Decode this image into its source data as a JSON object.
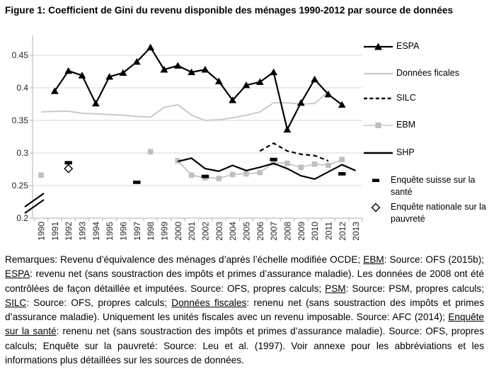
{
  "title": "Figure 1: Coefficient de Gini du revenu disponible des ménages 1990-2012 par source de données",
  "chart_data": {
    "type": "line",
    "title": "Coefficient de Gini du revenu disponible des ménages 1990-2012 par source de données",
    "xlabel": "",
    "ylabel": "",
    "y_ticks": [
      0.2,
      0.25,
      0.3,
      0.35,
      0.4,
      0.45
    ],
    "x_ticks": [
      1990,
      1991,
      1992,
      1993,
      1994,
      1995,
      1996,
      1997,
      1998,
      1999,
      2000,
      2001,
      2002,
      2003,
      2004,
      2005,
      2006,
      2007,
      2008,
      2009,
      2010,
      2011,
      2012,
      2013
    ],
    "ylim": [
      0.2,
      0.47
    ],
    "y_axis_break_between": [
      0.2,
      0.25
    ],
    "grid": "horizontal",
    "legend_position": "right",
    "series": [
      {
        "name": "ESPA",
        "style": "line+triangle",
        "color": "#000000",
        "width": 2.2,
        "x": [
          1991,
          1992,
          1993,
          1994,
          1995,
          1996,
          1997,
          1998,
          1999,
          2000,
          2001,
          2002,
          2003,
          2004,
          2005,
          2006,
          2007,
          2008,
          2009,
          2010,
          2011,
          2012
        ],
        "y": [
          0.395,
          0.426,
          0.419,
          0.376,
          0.417,
          0.423,
          0.44,
          0.462,
          0.428,
          0.434,
          0.424,
          0.428,
          0.41,
          0.381,
          0.404,
          0.409,
          0.424,
          0.336,
          0.377,
          0.413,
          0.39,
          0.374
        ]
      },
      {
        "name": "Données ficales",
        "style": "line",
        "color": "#c9c9c9",
        "width": 2,
        "x": [
          1990,
          1991,
          1992,
          1993,
          1994,
          1995,
          1996,
          1997,
          1998,
          1999,
          2000,
          2001,
          2002,
          2003,
          2004,
          2005,
          2006,
          2007,
          2008,
          2009,
          2010,
          2011
        ],
        "y": [
          0.363,
          0.364,
          0.364,
          0.361,
          0.36,
          0.359,
          0.358,
          0.356,
          0.355,
          0.37,
          0.374,
          0.358,
          0.35,
          0.351,
          0.354,
          0.358,
          0.363,
          0.377,
          0.377,
          0.375,
          0.376,
          0.394
        ]
      },
      {
        "name": "SILC",
        "style": "dashed",
        "color": "#000000",
        "width": 2.2,
        "x": [
          2006,
          2007,
          2008,
          2009,
          2010,
          2011
        ],
        "y": [
          0.303,
          0.315,
          0.303,
          0.298,
          0.296,
          0.288
        ]
      },
      {
        "name": "EBM",
        "style": "line+square",
        "color": "#bfbfbf",
        "width": 1.6,
        "x": [
          2000,
          2001,
          2002,
          2003,
          2004,
          2005,
          2006,
          2007,
          2008,
          2009,
          2010,
          2011,
          2012
        ],
        "y": [
          0.288,
          0.266,
          0.262,
          0.261,
          0.267,
          0.268,
          0.27,
          0.285,
          0.284,
          0.278,
          0.283,
          0.281,
          0.29
        ],
        "isolated": [
          {
            "x": 1990,
            "y": 0.266
          },
          {
            "x": 1998,
            "y": 0.302
          }
        ]
      },
      {
        "name": "SHP",
        "style": "line",
        "color": "#000000",
        "width": 2.2,
        "x": [
          2000,
          2001,
          2002,
          2003,
          2004,
          2005,
          2006,
          2007,
          2008,
          2009,
          2010,
          2011,
          2012,
          2013
        ],
        "y": [
          0.287,
          0.292,
          0.276,
          0.272,
          0.281,
          0.273,
          0.278,
          0.284,
          0.276,
          0.265,
          0.26,
          0.271,
          0.282,
          0.273
        ]
      },
      {
        "name": "Enquête suisse sur la santé",
        "style": "bar-marker",
        "color": "#000000",
        "width": 0,
        "x": [
          1992,
          1997,
          2002,
          2007,
          2012
        ],
        "y": [
          0.285,
          0.255,
          0.264,
          0.29,
          0.268
        ]
      },
      {
        "name": "Enquête nationale sur la pauvreté",
        "style": "diamond",
        "color": "#000000",
        "width": 0,
        "x": [
          1992
        ],
        "y": [
          0.276
        ]
      }
    ]
  },
  "footnote": {
    "segments": [
      {
        "t": "Remarques: Revenu d’équivalence des ménages d’après l’échelle modifiée OCDE; ",
        "u": false
      },
      {
        "t": "EBM",
        "u": true
      },
      {
        "t": ": Source: OFS (2015b); ",
        "u": false
      },
      {
        "t": "ESPA",
        "u": true
      },
      {
        "t": ": revenu net (sans soustraction des impôts et primes d’assurance maladie). Les données de 2008 ont été contrôlées de façon détaillée et imputées. Source: OFS, propres calculs; ",
        "u": false
      },
      {
        "t": "PSM",
        "u": true
      },
      {
        "t": ": Source: PSM, propres calculs; ",
        "u": false
      },
      {
        "t": "SILC",
        "u": true
      },
      {
        "t": ": Source: OFS, propres calculs; ",
        "u": false
      },
      {
        "t": "Données fiscales",
        "u": true
      },
      {
        "t": ": renenu net (sans soustraction des impôts et primes d’assurance maladie). Uniquement les unités fiscales avec un revenu imposable. Source: AFC (2014); ",
        "u": false
      },
      {
        "t": "Enquête sur la santé",
        "u": true
      },
      {
        "t": ": renenu net (sans soustraction des impôts et primes d’assurance maladie). Source: OFS, propres calculs; Enquête sur la pauvreté: Source: Leu et al. (1997). Voir annexe pour les abbréviations et les informations plus détaillées sur les sources de données.",
        "u": false
      }
    ]
  }
}
